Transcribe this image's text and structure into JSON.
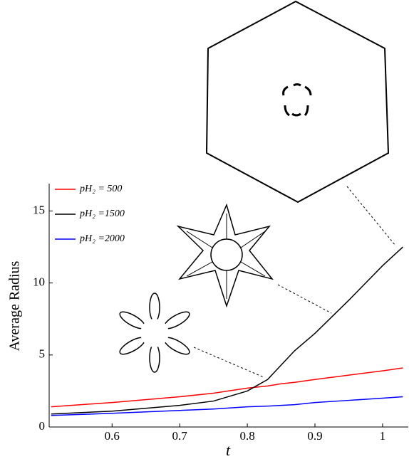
{
  "chart_data": {
    "type": "line",
    "x_label": "t",
    "y_label": "Average Radius",
    "x": [
      0.51,
      0.6,
      0.7,
      0.75,
      0.8,
      0.83,
      0.85,
      0.87,
      0.9,
      0.95,
      1.0,
      1.03
    ],
    "series": [
      {
        "name": "pH₂ = 500",
        "color": "#ff0000",
        "values": [
          1.4,
          1.7,
          2.1,
          2.35,
          2.7,
          2.85,
          3.0,
          3.1,
          3.3,
          3.6,
          3.9,
          4.1
        ]
      },
      {
        "name": "pH₂ =1500",
        "color": "#000000",
        "values": [
          0.9,
          1.1,
          1.5,
          1.8,
          2.5,
          3.3,
          4.3,
          5.3,
          6.5,
          8.8,
          11.2,
          12.5
        ]
      },
      {
        "name": "pH₂ =2000",
        "color": "#0000ff",
        "values": [
          0.8,
          0.95,
          1.15,
          1.25,
          1.4,
          1.45,
          1.5,
          1.55,
          1.7,
          1.85,
          2.0,
          2.1
        ]
      }
    ],
    "xlim": [
      0.507,
      1.038
    ],
    "ylim": [
      0,
      16.9
    ],
    "xticks": [
      0.6,
      0.7,
      0.8,
      0.9,
      1
    ],
    "yticks": [
      0,
      5,
      10,
      15
    ]
  }
}
